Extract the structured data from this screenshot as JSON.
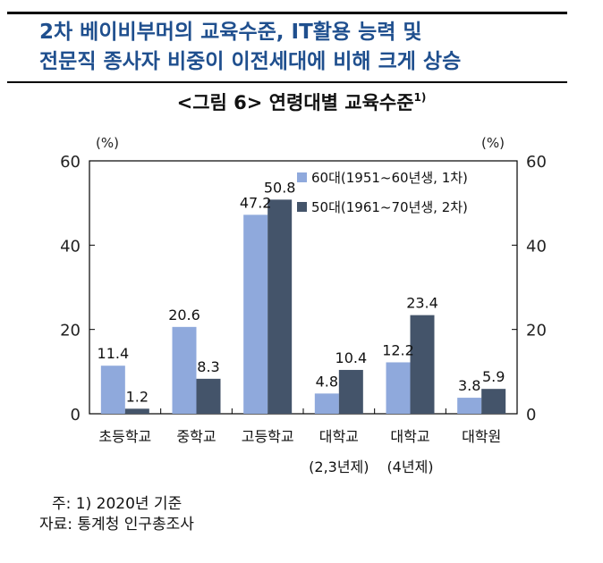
{
  "headline": {
    "line1": "2차 베이비부머의 교육수준, IT활용 능력 및",
    "line2": "전문직 종사자 비중이 이전세대에 비해 크게 상승"
  },
  "figure": {
    "title": "<그림 6> 연령대별 교육수준",
    "title_sup": "1)"
  },
  "chart_data": {
    "type": "bar",
    "categories": [
      [
        "초등학교"
      ],
      [
        "중학교"
      ],
      [
        "고등학교"
      ],
      [
        "대학교",
        "(2,3년제)"
      ],
      [
        "대학교",
        "(4년제)"
      ],
      [
        "대학원"
      ]
    ],
    "series": [
      {
        "name": "60대(1951~60년생, 1차)",
        "color": "#8fa9dc",
        "values": [
          11.4,
          20.6,
          47.2,
          4.8,
          12.2,
          3.8
        ]
      },
      {
        "name": "50대(1961~70년생, 2차)",
        "color": "#44546a",
        "values": [
          1.2,
          8.3,
          50.8,
          10.4,
          23.4,
          5.9
        ]
      }
    ],
    "ylim": [
      0,
      60
    ],
    "yticks": [
      0,
      20,
      40,
      60
    ],
    "yunit_left": "(%)",
    "yunit_right": "(%)",
    "legend_position": "top-right",
    "grid": false
  },
  "notes": {
    "note": "주: 1) 2020년 기준",
    "source": "자료: 통계청 인구총조사"
  }
}
